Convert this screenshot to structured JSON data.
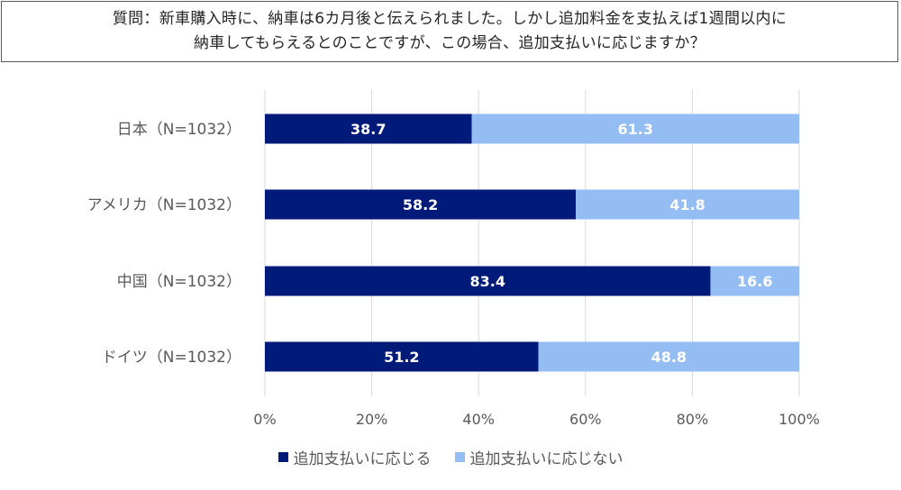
{
  "question": {
    "line1": "質問：新車購入時に、納車は6カ月後と伝えられました。しかし追加料金を支払えば1週間以内に",
    "line2": "納車してもらえるとのことですが、この場合、追加支払いに応じますか？"
  },
  "colors": {
    "accept": "#001a7a",
    "decline": "#94bdf3",
    "grid": "#d9d9d9"
  },
  "chart_data": {
    "type": "bar",
    "orientation": "horizontal",
    "stacked": true,
    "categories": [
      "日本（N=1032）",
      "アメリカ（N=1032）",
      "中国（N=1032）",
      "ドイツ（N=1032）"
    ],
    "series": [
      {
        "name": "追加支払いに応じる",
        "values": [
          38.7,
          58.2,
          83.4,
          51.2
        ]
      },
      {
        "name": "追加支払いに応じない",
        "values": [
          61.3,
          41.8,
          16.6,
          48.8
        ]
      }
    ],
    "xticks": [
      "0%",
      "20%",
      "40%",
      "60%",
      "80%",
      "100%"
    ],
    "xlim": [
      0,
      100
    ],
    "grid": true,
    "legend": "bottom",
    "data_labels": [
      [
        "38.7",
        "58.2",
        "83.4",
        "51.2"
      ],
      [
        "61.3",
        "41.8",
        "16.6",
        "48.8"
      ]
    ]
  }
}
